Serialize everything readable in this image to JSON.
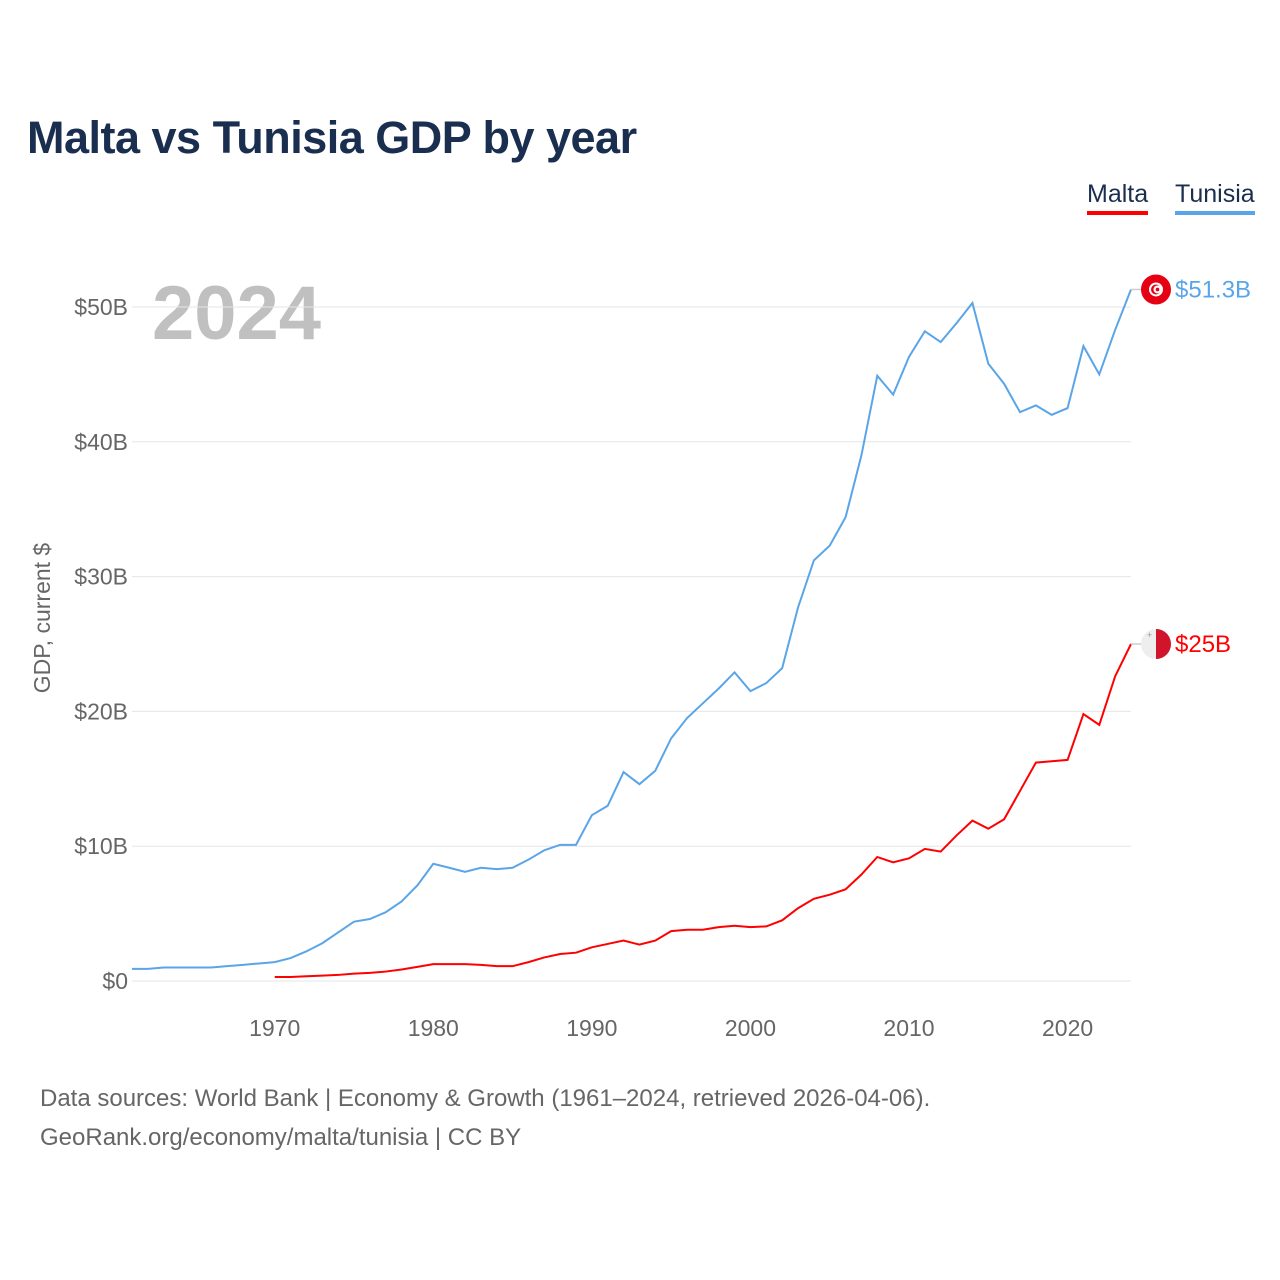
{
  "title": "Malta vs Tunisia GDP by year",
  "year_label": "2024",
  "footer": {
    "line1": "Data sources: World Bank | Economy & Growth (1961–2024, retrieved 2026-04-06).",
    "line2": "GeoRank.org/economy/malta/tunisia | CC BY"
  },
  "chart_data": {
    "type": "line",
    "title": "Malta vs Tunisia GDP by year",
    "xlabel": "",
    "ylabel": "GDP, current $",
    "xlim": [
      1961,
      2024
    ],
    "ylim": [
      0,
      50
    ],
    "grid": true,
    "legend": "top-right",
    "x_ticks": [
      1970,
      1980,
      1990,
      2000,
      2010,
      2020
    ],
    "y_ticks": [
      {
        "v": 0,
        "label": "$0"
      },
      {
        "v": 10,
        "label": "$10B"
      },
      {
        "v": 20,
        "label": "$20B"
      },
      {
        "v": 30,
        "label": "$30B"
      },
      {
        "v": 40,
        "label": "$40B"
      },
      {
        "v": 50,
        "label": "$50B"
      }
    ],
    "series": [
      {
        "name": "Malta",
        "color": "#ff0000",
        "start_year": 1970,
        "end_label": "$25B",
        "flag": "malta-flag",
        "values": [
          0.3,
          0.3,
          0.35,
          0.4,
          0.45,
          0.55,
          0.6,
          0.7,
          0.85,
          1.05,
          1.25,
          1.25,
          1.25,
          1.2,
          1.1,
          1.1,
          1.4,
          1.75,
          2.0,
          2.1,
          2.5,
          2.75,
          3.0,
          2.7,
          3.0,
          3.7,
          3.8,
          3.8,
          4.0,
          4.1,
          4.0,
          4.05,
          4.5,
          5.4,
          6.1,
          6.4,
          6.8,
          7.9,
          9.2,
          8.8,
          9.1,
          9.8,
          9.6,
          10.8,
          11.9,
          11.3,
          12.0,
          14.1,
          16.2,
          16.3,
          16.4,
          19.8,
          19.0,
          22.6,
          25.0
        ]
      },
      {
        "name": "Tunisia",
        "color": "#5aa5e8",
        "start_year": 1961,
        "end_label": "$51.3B",
        "flag": "tunisia-flag",
        "values": [
          0.9,
          0.9,
          1.0,
          1.0,
          1.0,
          1.0,
          1.1,
          1.2,
          1.3,
          1.4,
          1.7,
          2.2,
          2.8,
          3.6,
          4.4,
          4.6,
          5.1,
          5.9,
          7.1,
          8.7,
          8.4,
          8.1,
          8.4,
          8.3,
          8.4,
          9.0,
          9.7,
          10.1,
          10.1,
          12.3,
          13.0,
          15.5,
          14.6,
          15.6,
          18.0,
          19.5,
          20.6,
          21.7,
          22.9,
          21.5,
          22.1,
          23.2,
          27.7,
          31.2,
          32.3,
          34.4,
          39.0,
          44.9,
          43.5,
          46.3,
          48.2,
          47.4,
          48.8,
          50.3,
          45.8,
          44.3,
          42.2,
          42.7,
          42.0,
          42.5,
          47.1,
          45.0,
          48.3,
          51.3
        ]
      }
    ]
  }
}
